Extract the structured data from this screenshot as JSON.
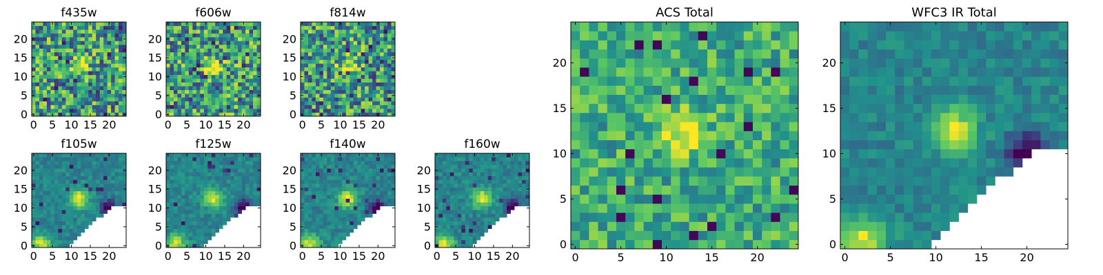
{
  "colormap": [
    "#440154",
    "#3b528b",
    "#21918c",
    "#5ec962",
    "#fde725"
  ],
  "chart_data": [
    {
      "type": "heatmap",
      "title": "f435w",
      "colormap": "viridis",
      "grid": false,
      "ticks_x": [
        0,
        5,
        10,
        15,
        20
      ],
      "ticks_y": [
        0,
        5,
        10,
        15,
        20
      ],
      "xlim": [
        0,
        24
      ],
      "ylim": [
        0,
        24
      ]
    },
    {
      "type": "heatmap",
      "title": "f606w",
      "colormap": "viridis",
      "grid": false,
      "ticks_x": [
        0,
        5,
        10,
        15,
        20
      ],
      "ticks_y": [
        0,
        5,
        10,
        15,
        20
      ],
      "xlim": [
        0,
        24
      ],
      "ylim": [
        0,
        24
      ]
    },
    {
      "type": "heatmap",
      "title": "f814w",
      "colormap": "viridis",
      "grid": false,
      "ticks_x": [
        0,
        5,
        10,
        15,
        20
      ],
      "ticks_y": [
        0,
        5,
        10,
        15,
        20
      ],
      "xlim": [
        0,
        24
      ],
      "ylim": [
        0,
        24
      ]
    },
    {
      "type": "heatmap",
      "title": "f105w",
      "colormap": "viridis",
      "grid": false,
      "ticks_x": [
        0,
        5,
        10,
        15,
        20
      ],
      "ticks_y": [
        0,
        5,
        10,
        15,
        20
      ],
      "xlim": [
        0,
        24
      ],
      "ylim": [
        0,
        24
      ],
      "masked_region": "lower-right"
    },
    {
      "type": "heatmap",
      "title": "f125w",
      "colormap": "viridis",
      "grid": false,
      "ticks_x": [
        0,
        5,
        10,
        15,
        20
      ],
      "ticks_y": [
        0,
        5,
        10,
        15,
        20
      ],
      "xlim": [
        0,
        24
      ],
      "ylim": [
        0,
        24
      ],
      "masked_region": "lower-right"
    },
    {
      "type": "heatmap",
      "title": "f140w",
      "colormap": "viridis",
      "grid": false,
      "ticks_x": [
        0,
        5,
        10,
        15,
        20
      ],
      "ticks_y": [
        0,
        5,
        10,
        15,
        20
      ],
      "xlim": [
        0,
        24
      ],
      "ylim": [
        0,
        24
      ],
      "masked_region": "lower-right"
    },
    {
      "type": "heatmap",
      "title": "f160w",
      "colormap": "viridis",
      "grid": false,
      "ticks_x": [
        0,
        5,
        10,
        15,
        20
      ],
      "ticks_y": [
        0,
        5,
        10,
        15,
        20
      ],
      "xlim": [
        0,
        24
      ],
      "ylim": [
        0,
        24
      ],
      "masked_region": "lower-right"
    },
    {
      "type": "heatmap",
      "title": "ACS Total",
      "colormap": "viridis",
      "grid": false,
      "ticks_x": [
        0,
        5,
        10,
        15,
        20
      ],
      "ticks_y": [
        0,
        5,
        10,
        15,
        20
      ],
      "xlim": [
        0,
        24
      ],
      "ylim": [
        0,
        24
      ]
    },
    {
      "type": "heatmap",
      "title": "WFC3 IR Total",
      "colormap": "viridis",
      "grid": false,
      "ticks_x": [
        0,
        5,
        10,
        15,
        20
      ],
      "ticks_y": [
        0,
        5,
        10,
        15,
        20
      ],
      "xlim": [
        0,
        24
      ],
      "ylim": [
        0,
        24
      ],
      "masked_region": "lower-right"
    }
  ]
}
